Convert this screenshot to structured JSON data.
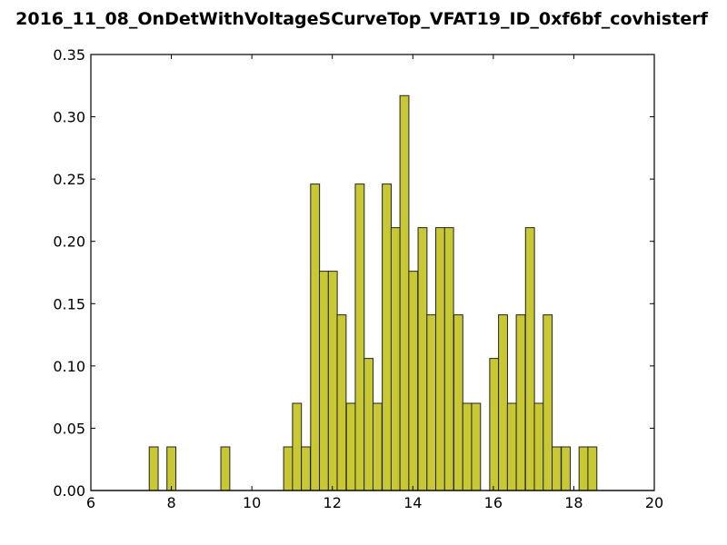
{
  "chart_data": {
    "type": "bar",
    "title": "2016_11_08_OnDetWithVoltageSCurveTop_VFAT19_ID_0xf6bf_covhisterf",
    "xlabel": "",
    "ylabel": "",
    "xlim": [
      6,
      20
    ],
    "ylim": [
      0,
      0.35
    ],
    "x_ticks": [
      "6",
      "8",
      "10",
      "12",
      "14",
      "16",
      "18",
      "20"
    ],
    "y_ticks": [
      "0.00",
      "0.05",
      "0.10",
      "0.15",
      "0.20",
      "0.25",
      "0.30",
      "0.35"
    ],
    "bar_color": "#c8c834",
    "edge_color": "#222222",
    "grid": false,
    "bin_width": 0.222,
    "bins": [
      {
        "left": 7.45,
        "value": 0.035
      },
      {
        "left": 7.89,
        "value": 0.035
      },
      {
        "left": 9.23,
        "value": 0.035
      },
      {
        "left": 10.79,
        "value": 0.035
      },
      {
        "left": 11.01,
        "value": 0.07
      },
      {
        "left": 11.23,
        "value": 0.035
      },
      {
        "left": 11.46,
        "value": 0.246
      },
      {
        "left": 11.68,
        "value": 0.176
      },
      {
        "left": 11.9,
        "value": 0.176
      },
      {
        "left": 12.12,
        "value": 0.141
      },
      {
        "left": 12.35,
        "value": 0.07
      },
      {
        "left": 12.57,
        "value": 0.246
      },
      {
        "left": 12.79,
        "value": 0.106
      },
      {
        "left": 13.01,
        "value": 0.07
      },
      {
        "left": 13.24,
        "value": 0.246
      },
      {
        "left": 13.46,
        "value": 0.211
      },
      {
        "left": 13.68,
        "value": 0.317
      },
      {
        "left": 13.9,
        "value": 0.176
      },
      {
        "left": 14.13,
        "value": 0.211
      },
      {
        "left": 14.35,
        "value": 0.141
      },
      {
        "left": 14.57,
        "value": 0.211
      },
      {
        "left": 14.79,
        "value": 0.211
      },
      {
        "left": 15.02,
        "value": 0.141
      },
      {
        "left": 15.24,
        "value": 0.07
      },
      {
        "left": 15.46,
        "value": 0.07
      },
      {
        "left": 15.91,
        "value": 0.106
      },
      {
        "left": 16.13,
        "value": 0.141
      },
      {
        "left": 16.35,
        "value": 0.07
      },
      {
        "left": 16.57,
        "value": 0.141
      },
      {
        "left": 16.8,
        "value": 0.211
      },
      {
        "left": 17.02,
        "value": 0.07
      },
      {
        "left": 17.24,
        "value": 0.141
      },
      {
        "left": 17.46,
        "value": 0.035
      },
      {
        "left": 17.69,
        "value": 0.035
      },
      {
        "left": 18.13,
        "value": 0.035
      },
      {
        "left": 18.35,
        "value": 0.035
      }
    ]
  }
}
